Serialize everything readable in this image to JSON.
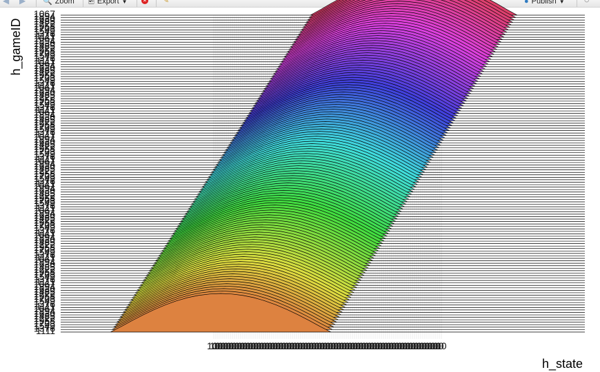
{
  "toolbar": {
    "zoom_label": "Zoom",
    "export_label": "Export",
    "publish_label": "Publish",
    "icons": [
      "back-arrow-icon",
      "forward-arrow-icon",
      "zoom-icon",
      "export-icon",
      "caret-down-icon",
      "stop-icon",
      "broom-icon",
      "publish-icon",
      "refresh-icon"
    ]
  },
  "chart_data": {
    "type": "area",
    "subtype": "ridgeline",
    "title": "",
    "xlabel": "h_state",
    "ylabel": "h_gameID",
    "n_ridges": 130,
    "grid": true,
    "legend": "none",
    "ridge_curve": {
      "x": [
        0.0,
        0.05,
        0.1,
        0.15,
        0.2,
        0.25,
        0.3,
        0.35,
        0.4,
        0.45,
        0.5,
        0.55,
        0.6,
        0.65,
        0.7,
        0.75,
        0.8,
        0.85,
        0.9,
        0.95,
        1.0
      ],
      "density": [
        0.0,
        0.3,
        0.62,
        0.92,
        1.2,
        1.45,
        1.66,
        1.83,
        1.95,
        2.02,
        2.05,
        2.02,
        1.95,
        1.83,
        1.66,
        1.45,
        1.2,
        0.92,
        0.62,
        0.3,
        0.0
      ]
    },
    "note_labels_overplotted": true
  }
}
